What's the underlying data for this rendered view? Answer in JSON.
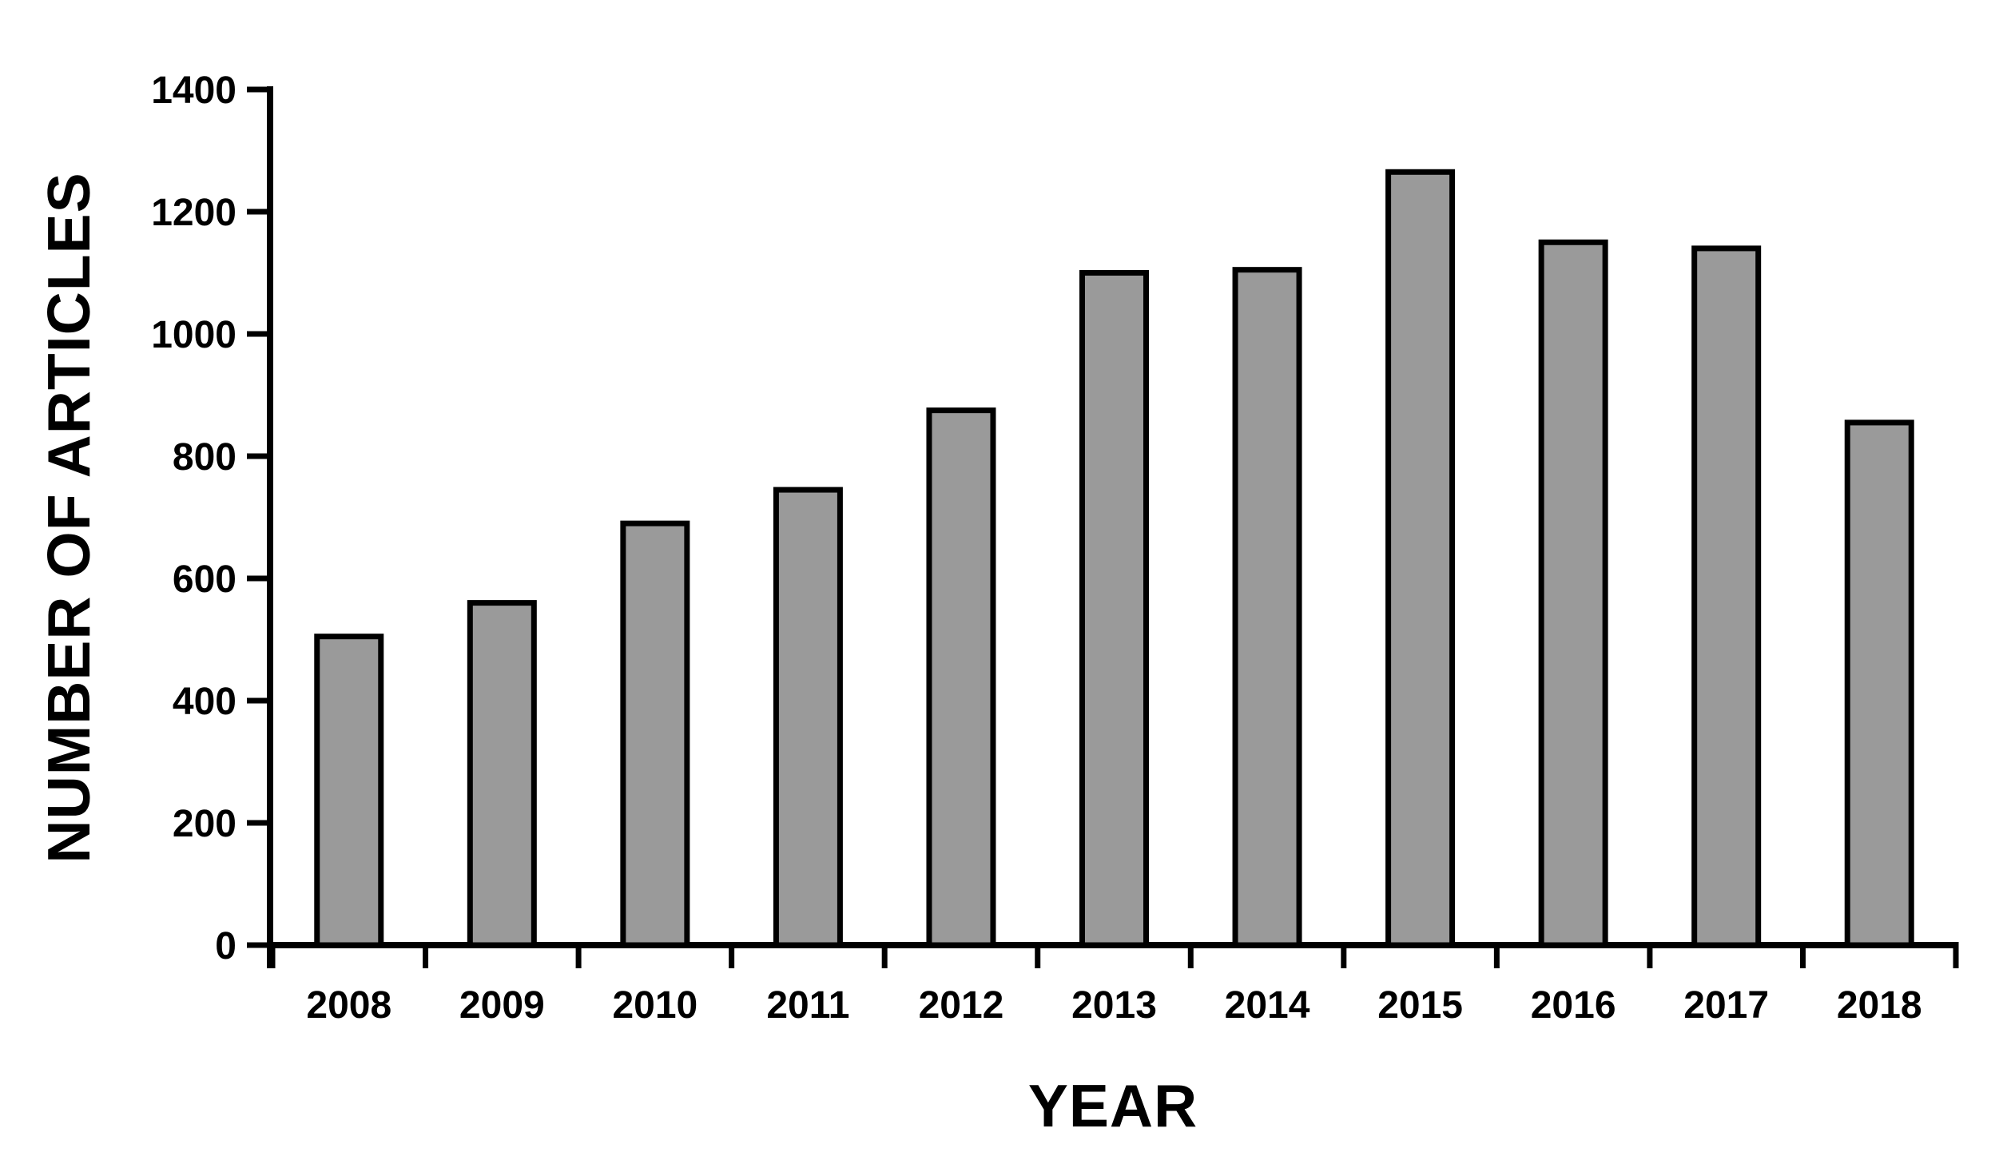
{
  "chart_data": {
    "type": "bar",
    "title": "",
    "xlabel": "YEAR",
    "ylabel": "NUMBER OF ARTICLES",
    "categories": [
      "2008",
      "2009",
      "2010",
      "2011",
      "2012",
      "2013",
      "2014",
      "2015",
      "2016",
      "2017",
      "2018"
    ],
    "values": [
      505,
      560,
      690,
      745,
      875,
      1100,
      1105,
      1265,
      1150,
      1140,
      855
    ],
    "ylim": [
      0,
      1400
    ],
    "ytick_step": 200,
    "yticks": [
      "0",
      "200",
      "400",
      "600",
      "800",
      "1000",
      "1200",
      "1400"
    ],
    "grid": false,
    "legend_position": "none",
    "bar_fill_color": "#9a9a9a",
    "bar_border_color": "#000000",
    "axis_color": "#000000",
    "background_color": "#ffffff"
  }
}
